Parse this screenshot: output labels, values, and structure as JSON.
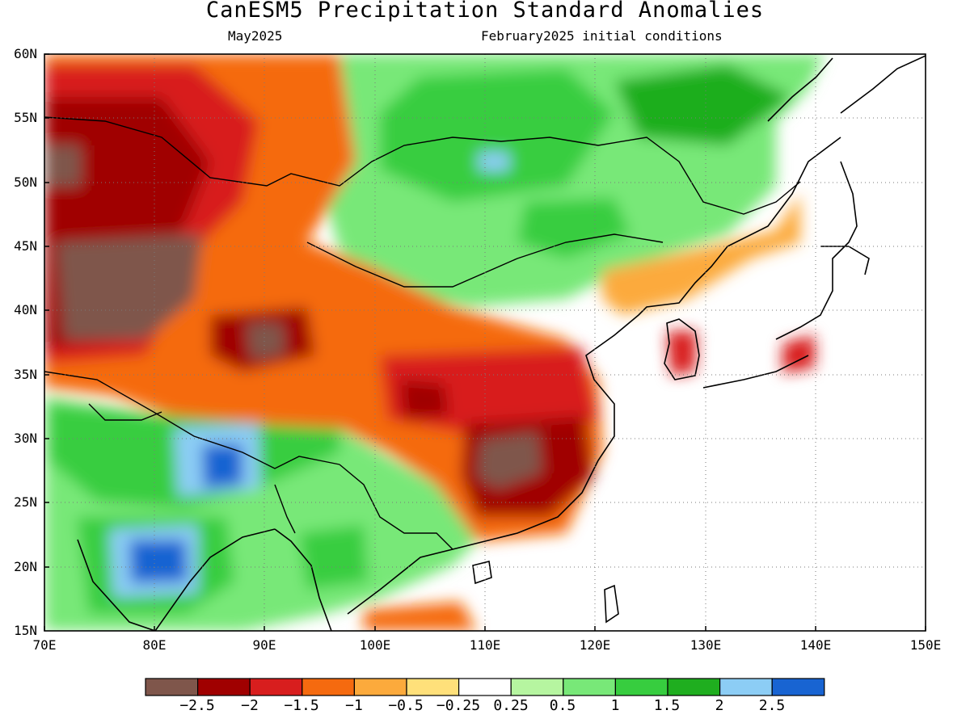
{
  "header": {
    "title": "CanESM5 Precipitation Standard Anomalies",
    "valid_month": "May2025",
    "init_conditions": "February2025 initial conditions"
  },
  "map": {
    "lon_range": [
      70,
      150
    ],
    "lat_range": [
      15,
      60
    ],
    "lat_labels": [
      "60N",
      "55N",
      "50N",
      "45N",
      "40N",
      "35N",
      "30N",
      "25N",
      "20N",
      "15N"
    ],
    "lon_labels": [
      "70E",
      "80E",
      "90E",
      "100E",
      "110E",
      "120E",
      "130E",
      "140E",
      "150E"
    ],
    "grid": "dotted",
    "ocean_color": "#ffffff",
    "coastline_color": "#000000"
  },
  "colorbar": {
    "colors": [
      "#7f564b",
      "#a00000",
      "#d81e1e",
      "#f56a0f",
      "#fcaa3c",
      "#ffe07a",
      "#ffffff",
      "#b6f5a0",
      "#78e878",
      "#37cd3f",
      "#1fae1f",
      "#8ccdf5",
      "#1864d2"
    ],
    "tick_labels": [
      "−2.5",
      "−2",
      "−1.5",
      "−1",
      "−0.5",
      "−0.25",
      "0.25",
      "0.5",
      "1",
      "1.5",
      "2",
      "2.5"
    ]
  },
  "anomaly_regions": [
    {
      "name": "Tarim / western Xinjiang dry core",
      "level": "≤ −2.5",
      "color": "#7f564b"
    },
    {
      "name": "Kazakhstan dry region",
      "level": "−2 to −2.5",
      "color": "#a00000"
    },
    {
      "name": "Southeast China dry core",
      "level": "≤ −2.5",
      "color": "#7f564b"
    },
    {
      "name": "Central India wet core",
      "level": "≥ 2.5",
      "color": "#1864d2"
    },
    {
      "name": "Eastern Himalaya wet core",
      "level": "≥ 2.5",
      "color": "#1864d2"
    },
    {
      "name": "Mongolia / Baikal wet region",
      "level": "1 to 2",
      "color": "#37cd3f"
    }
  ]
}
